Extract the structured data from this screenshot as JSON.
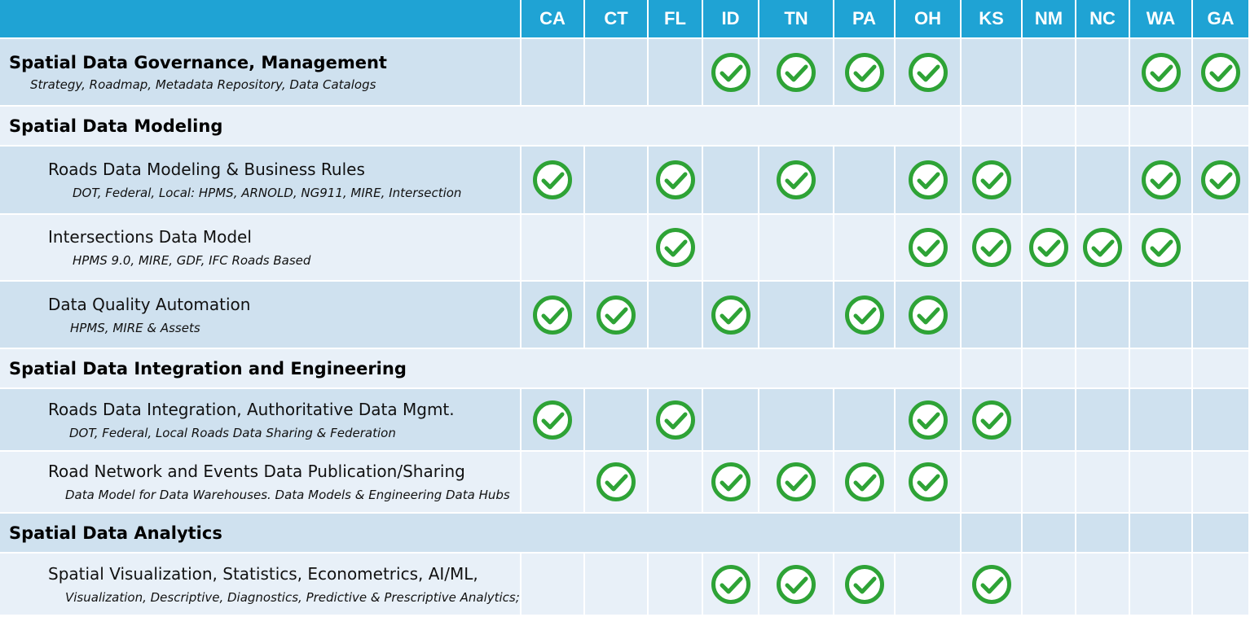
{
  "header": {
    "states": [
      "CA",
      "CT",
      "FL",
      "ID",
      "TN",
      "PA",
      "OH",
      "KS",
      "NM",
      "NC",
      "WA",
      "GA"
    ]
  },
  "rows": [
    {
      "type": "item",
      "level": "main",
      "title": "Spatial Data Governance, Management",
      "desc": "Strategy, Roadmap, Metadata Repository, Data Catalogs",
      "checks": [
        false,
        false,
        false,
        true,
        true,
        true,
        true,
        false,
        false,
        false,
        true,
        true
      ]
    },
    {
      "type": "section",
      "title": "Spatial Data Modeling"
    },
    {
      "type": "item",
      "level": "sub",
      "title": "Roads Data Modeling & Business Rules",
      "desc": "DOT, Federal, Local: HPMS, ARNOLD, NG911, MIRE, Intersection",
      "checks": [
        true,
        false,
        true,
        false,
        true,
        false,
        true,
        true,
        false,
        false,
        true,
        true
      ]
    },
    {
      "type": "item",
      "level": "sub",
      "title": "Intersections Data Model",
      "desc": "HPMS 9.0, MIRE, GDF, IFC Roads Based",
      "checks": [
        false,
        false,
        true,
        false,
        false,
        false,
        true,
        true,
        true,
        true,
        true,
        false
      ]
    },
    {
      "type": "item",
      "level": "sub",
      "title": "Data Quality Automation",
      "desc": "HPMS, MIRE & Assets",
      "checks": [
        true,
        true,
        false,
        true,
        false,
        true,
        true,
        false,
        false,
        false,
        false,
        false
      ]
    },
    {
      "type": "section",
      "title": "Spatial Data Integration and Engineering"
    },
    {
      "type": "item",
      "level": "sub",
      "title": "Roads Data Integration, Authoritative Data Mgmt.",
      "desc": "DOT, Federal, Local Roads Data Sharing & Federation",
      "checks": [
        true,
        false,
        true,
        false,
        false,
        false,
        true,
        true,
        false,
        false,
        false,
        false
      ]
    },
    {
      "type": "item",
      "level": "sub",
      "title": "Road Network and Events Data Publication/Sharing",
      "desc": "Data Model for Data Warehouses. Data Models & Engineering Data Hubs",
      "checks": [
        false,
        true,
        false,
        true,
        true,
        true,
        true,
        false,
        false,
        false,
        false,
        false
      ]
    },
    {
      "type": "section",
      "title": "Spatial Data Analytics"
    },
    {
      "type": "item",
      "level": "sub",
      "title": "Spatial Visualization, Statistics, Econometrics, AI/ML,",
      "desc": "Visualization, Descriptive, Diagnostics, Predictive & Prescriptive Analytics;",
      "checks": [
        false,
        false,
        false,
        true,
        true,
        true,
        false,
        true,
        false,
        false,
        false,
        false
      ]
    }
  ],
  "colors": {
    "header": "#1fa3d4",
    "rowA": "#cfe1ef",
    "rowB": "#e8f0f8",
    "check": "#2ea336"
  }
}
